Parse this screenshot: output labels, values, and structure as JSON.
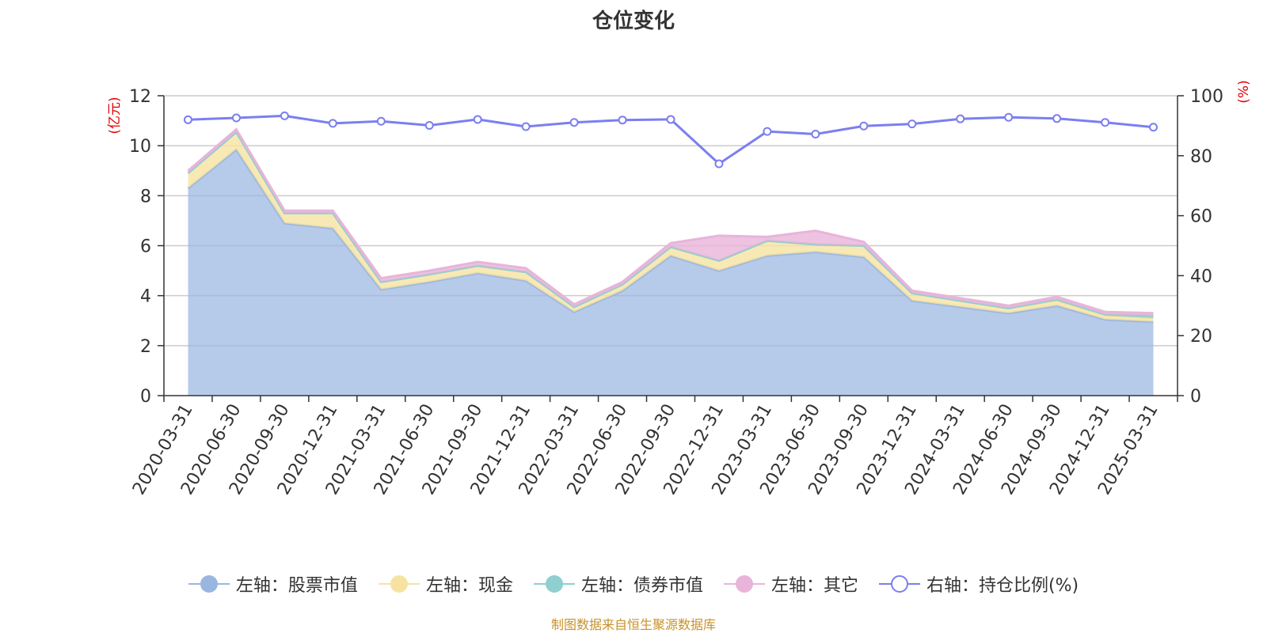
{
  "chart_data": {
    "type": "area",
    "title": "仓位变化",
    "left_axis_label": "(亿元)",
    "right_axis_label": "(%)",
    "left_ylim": [
      0,
      12
    ],
    "left_ticks": [
      "0",
      "2",
      "4",
      "6",
      "8",
      "10",
      "12"
    ],
    "right_ylim": [
      0,
      100
    ],
    "right_ticks": [
      "0",
      "20",
      "40",
      "60",
      "80",
      "100"
    ],
    "grid": true,
    "legend_position": "bottom",
    "categories": [
      "2020-03-31",
      "2020-06-30",
      "2020-09-30",
      "2020-12-31",
      "2021-03-31",
      "2021-06-30",
      "2021-09-30",
      "2021-12-31",
      "2022-03-31",
      "2022-06-30",
      "2022-09-30",
      "2022-12-31",
      "2023-03-31",
      "2023-06-30",
      "2023-09-30",
      "2023-12-31",
      "2024-03-31",
      "2024-06-30",
      "2024-09-30",
      "2024-12-31",
      "2025-03-31"
    ],
    "stacked_series": [
      {
        "name": "左轴：股票市值",
        "color": "#9ab6e0",
        "values": [
          8.3,
          9.85,
          6.9,
          6.7,
          4.25,
          4.55,
          4.9,
          4.6,
          3.35,
          4.2,
          5.6,
          5.0,
          5.6,
          5.75,
          5.55,
          3.8,
          3.55,
          3.3,
          3.6,
          3.05,
          2.95
        ]
      },
      {
        "name": "左轴：现金",
        "color": "#f6e3a1",
        "values": [
          0.6,
          0.7,
          0.4,
          0.6,
          0.3,
          0.3,
          0.3,
          0.35,
          0.2,
          0.25,
          0.35,
          0.4,
          0.6,
          0.3,
          0.45,
          0.3,
          0.25,
          0.2,
          0.2,
          0.15,
          0.15
        ]
      },
      {
        "name": "左轴：债券市值",
        "color": "#8fcfcf",
        "values": [
          0,
          0,
          0,
          0,
          0,
          0,
          0,
          0,
          0,
          0,
          0,
          0,
          0,
          0,
          0,
          0,
          0,
          0,
          0.05,
          0.05,
          0.1
        ]
      },
      {
        "name": "左轴：其它",
        "color": "#e8b4da",
        "values": [
          0.1,
          0.1,
          0.1,
          0.1,
          0.15,
          0.15,
          0.15,
          0.15,
          0.1,
          0.1,
          0.15,
          1.0,
          0.15,
          0.55,
          0.15,
          0.1,
          0.1,
          0.1,
          0.1,
          0.1,
          0.1
        ]
      }
    ],
    "line_series": {
      "name": "右轴：持仓比例(%)",
      "color": "#7b7ff0",
      "values": [
        92,
        92.6,
        93.3,
        90.8,
        91.5,
        90.1,
        92.1,
        89.7,
        91.1,
        91.9,
        92.1,
        77.3,
        88.1,
        87.2,
        89.9,
        90.6,
        92.3,
        92.8,
        92.4,
        91.1,
        89.5
      ]
    },
    "source_note": "制图数据来自恒生聚源数据库"
  }
}
